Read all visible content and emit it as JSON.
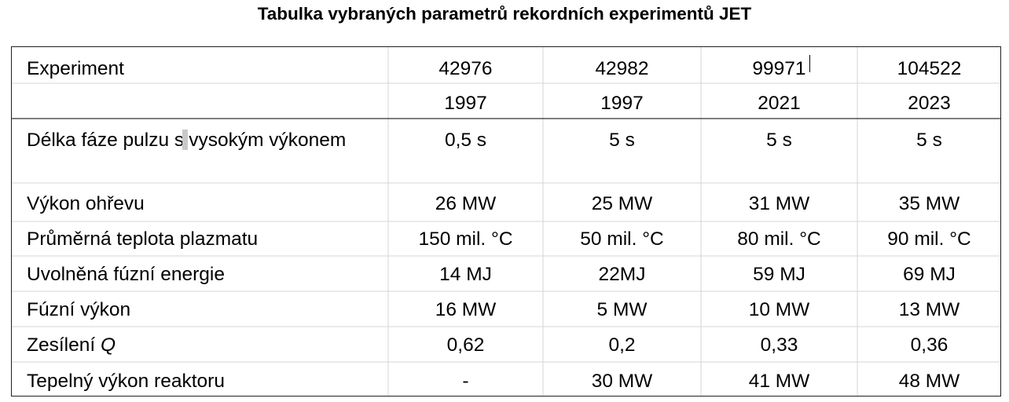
{
  "title": "Tabulka vybraných parametrů rekordních experimentů JET",
  "table": {
    "header_row": {
      "label": "Experiment",
      "values": [
        "42976",
        "42982",
        "99971",
        "104522"
      ]
    },
    "year_row": {
      "label": "",
      "values": [
        "1997",
        "1997",
        "2021",
        "2023"
      ]
    },
    "rows": [
      {
        "label_before": "Délka fáze pulzu s",
        "label_after": "vysokým výkonem",
        "values": [
          "0,5 s",
          "5 s",
          "5 s",
          "5 s"
        ]
      },
      {
        "label": "Výkon ohřevu",
        "values": [
          "26 MW",
          "25 MW",
          "31 MW",
          "35 MW"
        ]
      },
      {
        "label": "Průměrná teplota plazmatu",
        "values": [
          "150 mil. °C",
          "50 mil. °C",
          "80 mil. °C",
          "90 mil. °C"
        ]
      },
      {
        "label": "Uvolněná fúzní energie",
        "values": [
          "14 MJ",
          "22MJ",
          "59 MJ",
          "69 MJ"
        ]
      },
      {
        "label": "Fúzní výkon",
        "values": [
          "16 MW",
          "5 MW",
          "10 MW",
          "13 MW"
        ]
      },
      {
        "label_text": "Zesílení ",
        "label_italic": "Q",
        "values": [
          "0,62",
          "0,2",
          "0,33",
          "0,36"
        ]
      },
      {
        "label": "Tepelný výkon reaktoru",
        "values": [
          "-",
          "30 MW",
          "41 MW",
          "48 MW"
        ]
      }
    ]
  }
}
